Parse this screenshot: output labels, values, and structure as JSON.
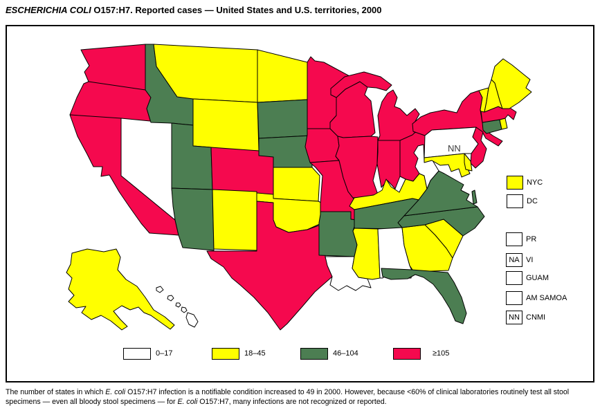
{
  "title": {
    "parts": [
      {
        "text": "ESCHERICHIA COLI",
        "italic": true
      },
      {
        "text": " O157:H7. Reported cases — United States and U.S. territories, 2000",
        "italic": false
      }
    ]
  },
  "chart_data": {
    "type": "heatmap",
    "subtype": "choropleth-us-map",
    "title": "ESCHERICHIA COLI O157:H7. Reported cases — United States and U.S. territories, 2000",
    "legend_position": "bottom",
    "categories": [
      {
        "id": "cat1",
        "label": "0–17",
        "color": "#FFFFFF"
      },
      {
        "id": "cat2",
        "label": "18–45",
        "color": "#FFFF00"
      },
      {
        "id": "cat3",
        "label": "46–104",
        "color": "#4C7E52"
      },
      {
        "id": "cat4",
        "label": "≥105",
        "color": "#F5094E"
      }
    ],
    "state_categories": {
      "WA": "cat4",
      "OR": "cat4",
      "CA": "cat4",
      "NV": "cat1",
      "ID": "cat3",
      "MT": "cat2",
      "WY": "cat2",
      "UT": "cat3",
      "CO": "cat4",
      "AZ": "cat3",
      "NM": "cat2",
      "ND": "cat2",
      "SD": "cat3",
      "NE": "cat3",
      "KS": "cat2",
      "OK": "cat2",
      "TX": "cat4",
      "MN": "cat4",
      "IA": "cat4",
      "MO": "cat4",
      "AR": "cat3",
      "LA": "cat1",
      "WI": "cat4",
      "IL": "cat4",
      "MI": "cat4",
      "IN": "cat4",
      "OH": "cat4",
      "KY": "cat2",
      "TN": "cat3",
      "MS": "cat2",
      "AL": "cat1",
      "GA": "cat2",
      "FL": "cat3",
      "SC": "cat2",
      "NC": "cat3",
      "VA": "cat3",
      "WV": "cat1",
      "MD": "cat2",
      "DE": "cat2",
      "PA": "cat1",
      "NJ": "cat4",
      "NY": "cat4",
      "CT": "cat3",
      "RI": "cat2",
      "MA": "cat4",
      "VT": "cat2",
      "NH": "cat2",
      "ME": "cat2",
      "AK": "cat2",
      "HI": "cat1"
    },
    "state_labels": {
      "PA": "NN"
    },
    "territories": [
      {
        "code": "NYC",
        "label": "NYC",
        "category": "cat2",
        "box_text": ""
      },
      {
        "code": "DC",
        "label": "DC",
        "category": "cat1",
        "box_text": ""
      },
      {
        "code": "PR",
        "label": "PR",
        "category": "cat1",
        "box_text": ""
      },
      {
        "code": "VI",
        "label": "VI",
        "category": "cat1",
        "box_text": "NA"
      },
      {
        "code": "GUAM",
        "label": "GUAM",
        "category": "cat1",
        "box_text": ""
      },
      {
        "code": "AMSAMOA",
        "label": "AM SAMOA",
        "category": "cat1",
        "box_text": ""
      },
      {
        "code": "CNMI",
        "label": "CNMI",
        "category": "cat1",
        "box_text": "NN"
      }
    ]
  },
  "legend": {
    "items": [
      {
        "category": "cat1",
        "label": "0–17"
      },
      {
        "category": "cat2",
        "label": "18–45"
      },
      {
        "category": "cat3",
        "label": "46–104"
      },
      {
        "category": "cat4",
        "label": "≥105"
      }
    ]
  },
  "footnote": {
    "parts": [
      {
        "text": "The number of states in which ",
        "italic": false
      },
      {
        "text": "E. coli",
        "italic": true
      },
      {
        "text": " O157:H7 infection is a notifiable condition increased to 49 in 2000. However, because <60% of clinical laboratories routinely test all stool specimens — even all bloody stool specimens — for ",
        "italic": false
      },
      {
        "text": "E. coli",
        "italic": true
      },
      {
        "text": " O157:H7, many infections are not recognized or reported.",
        "italic": false
      }
    ]
  }
}
